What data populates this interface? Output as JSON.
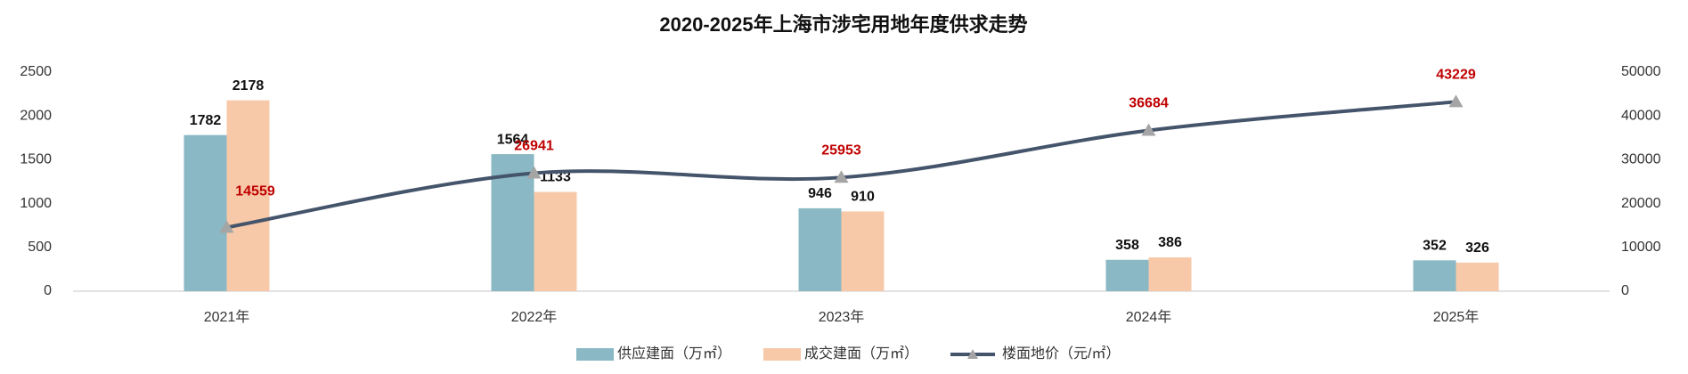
{
  "chart_data": {
    "type": "bar",
    "title": "2020-2025年上海市涉宅用地年度供求走势",
    "categories": [
      "2021年",
      "2022年",
      "2023年",
      "2024年",
      "2025年"
    ],
    "series": [
      {
        "name": "供应建面（万㎡）",
        "color": "#8ab8c4",
        "values": [
          1782,
          1564,
          946,
          358,
          352
        ]
      },
      {
        "name": "成交建面（万㎡）",
        "color": "#f7c9a9",
        "values": [
          2178,
          1133,
          910,
          386,
          326
        ]
      },
      {
        "name": "楼面地价（元/㎡）",
        "type": "line",
        "axis": "y2",
        "color": "#44546a",
        "marker_color": "#a5a5a5",
        "label_color": "#c00000",
        "values": [
          14559,
          26941,
          25953,
          36684,
          43229
        ]
      }
    ],
    "ylim": [
      0,
      2500
    ],
    "yticks": [
      0,
      500,
      1000,
      1500,
      2000,
      2500
    ],
    "y2lim": [
      0,
      50000
    ],
    "y2ticks": [
      0,
      10000,
      20000,
      30000,
      40000,
      50000
    ],
    "grid": false,
    "legend": "bottom"
  }
}
